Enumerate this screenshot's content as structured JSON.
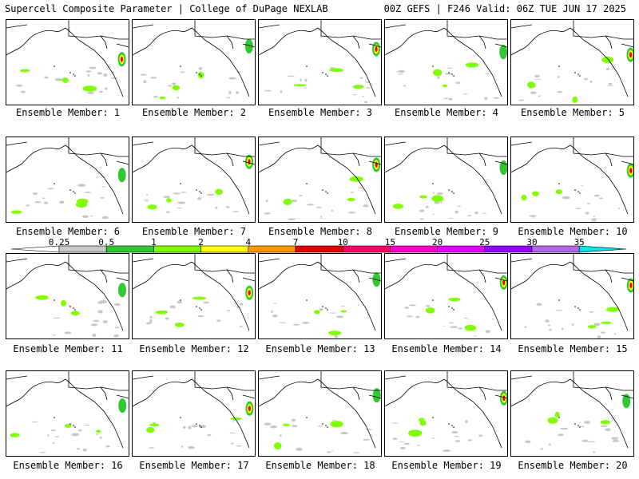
{
  "header": {
    "left_title": "Supercell Composite Parameter | College of DuPage NEXLAB",
    "right_title": "00Z GEFS | F246 Valid: 06Z TUE JUN 17 2025"
  },
  "members": [
    "Ensemble Member: 1",
    "Ensemble Member: 2",
    "Ensemble Member: 3",
    "Ensemble Member: 4",
    "Ensemble Member: 5",
    "Ensemble Member: 6",
    "Ensemble Member: 7",
    "Ensemble Member: 8",
    "Ensemble Member: 9",
    "Ensemble Member: 10",
    "Ensemble Member: 11",
    "Ensemble Member: 12",
    "Ensemble Member: 13",
    "Ensemble Member: 14",
    "Ensemble Member: 15",
    "Ensemble Member: 16",
    "Ensemble Member: 17",
    "Ensemble Member: 18",
    "Ensemble Member: 19",
    "Ensemble Member: 20"
  ],
  "colorbar": {
    "labels": [
      "0.25",
      "0.5",
      "1",
      "2",
      "4",
      "7",
      "10",
      "15",
      "20",
      "25",
      "30",
      "35"
    ],
    "colors": [
      "#c8c8c8",
      "#32c832",
      "#80ff00",
      "#ffff00",
      "#ff9900",
      "#e60000",
      "#ff0066",
      "#ff00cc",
      "#e600ff",
      "#9900ff",
      "#b366e6",
      "#00e6e6"
    ]
  },
  "colors": {
    "coast": "#000000",
    "low_scp": "#c8c8c8",
    "mid_scp": "#32c832",
    "light_scp": "#80ff00",
    "yellow_scp": "#ffff00",
    "high_scp": "#e60000"
  }
}
